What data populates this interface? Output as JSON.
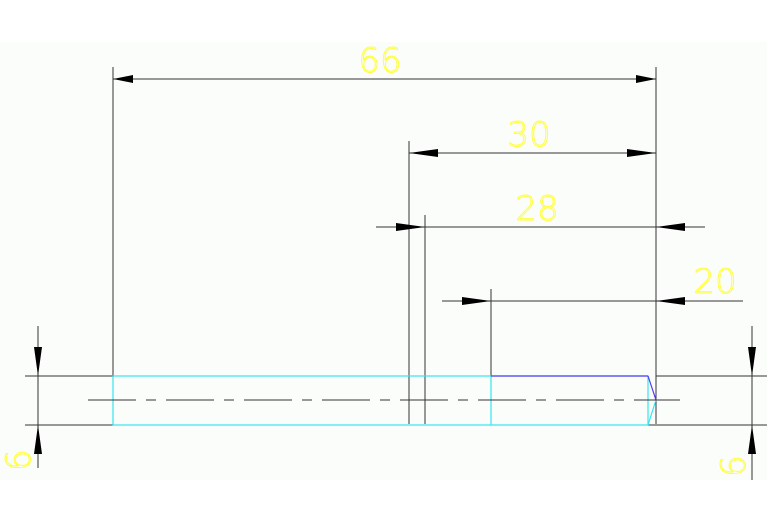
{
  "drawing": {
    "dimensions": {
      "overall_length": "66",
      "length_30": "30",
      "length_28": "28",
      "length_20": "20",
      "left_diameter": "6",
      "right_diameter": "6"
    },
    "colors": {
      "dimension_text": "#ffff33",
      "dimension_lines": "#333333",
      "part_outline": "#33e6f0",
      "chamfer_edge": "#5a3cf0",
      "background": "#fbfdfb"
    }
  }
}
